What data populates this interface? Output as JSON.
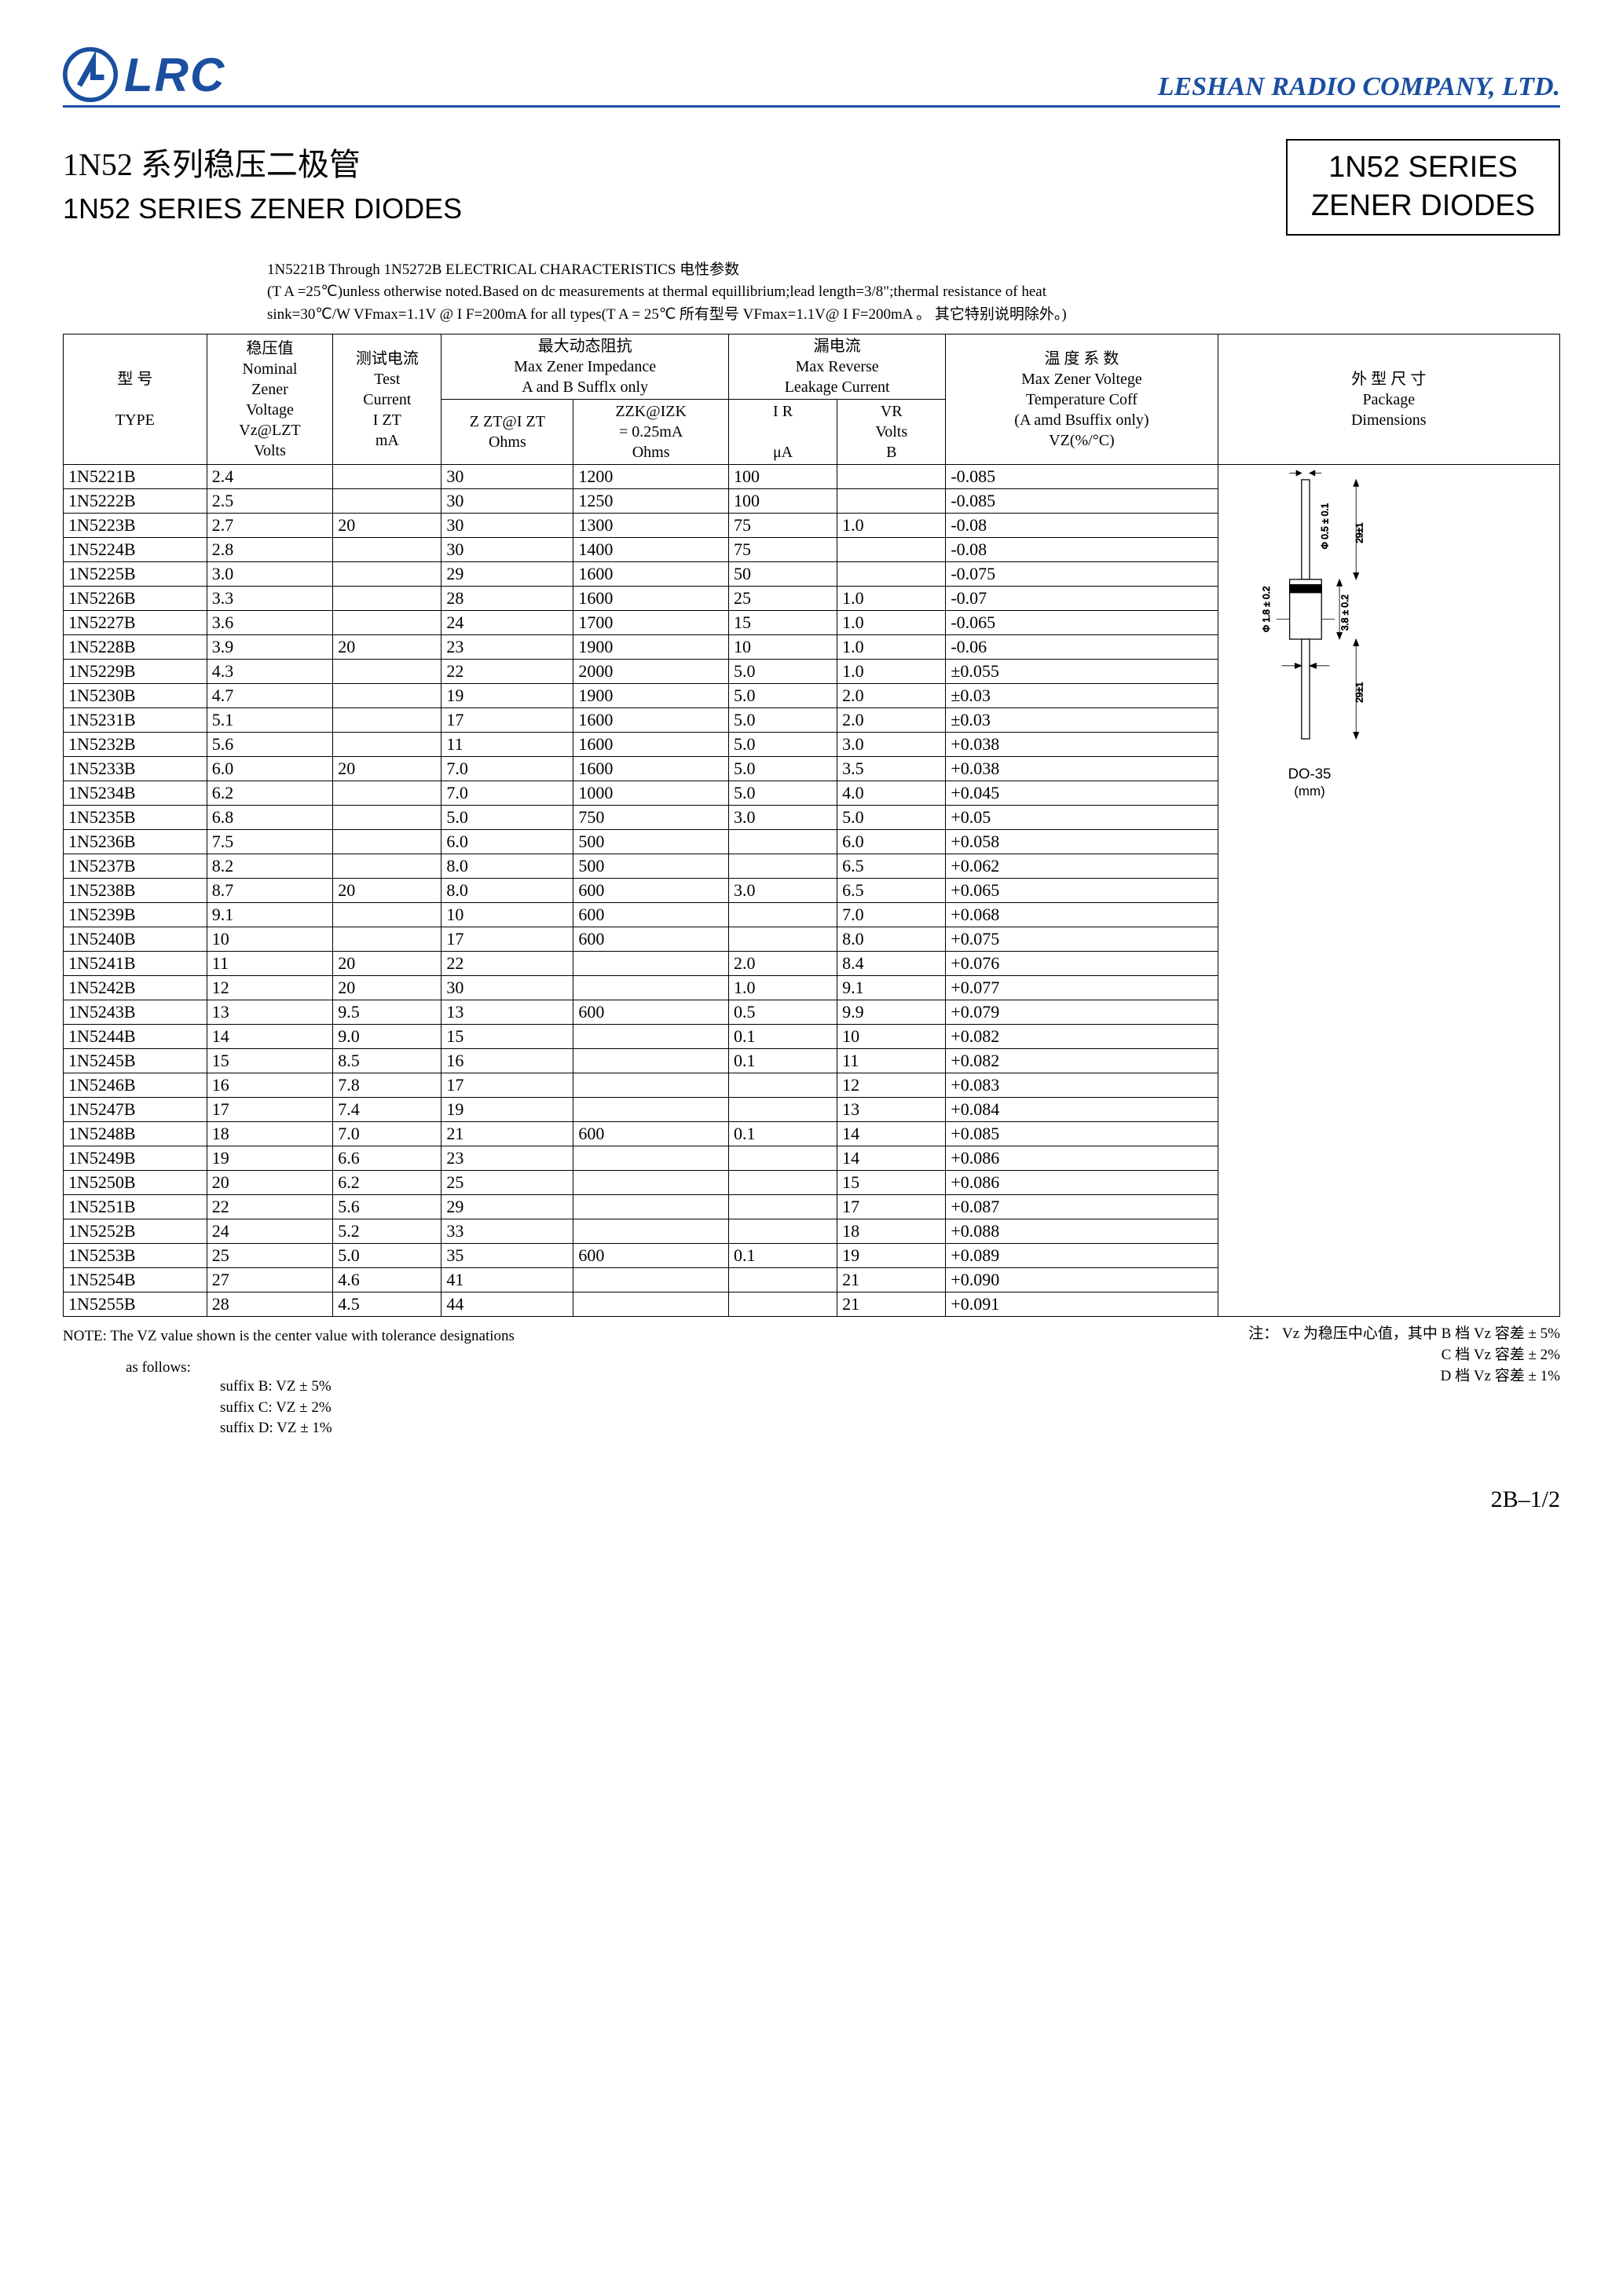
{
  "header": {
    "logo_text": "LRC",
    "company": "LESHAN RADIO COMPANY, LTD."
  },
  "titles": {
    "cn": "1N52 系列稳压二极管",
    "en": "1N52 SERIES ZENER DIODES",
    "box_line1": "1N52  SERIES",
    "box_line2": "ZENER  DIODES"
  },
  "pre_notes": {
    "line1": "1N5221B Through 1N5272B ELECTRICAL CHARACTERISTICS 电性参数",
    "line2": "(T A =25℃)unless otherwise noted.Based on dc measurements at thermal equillibrium;lead length=3/8\";thermal resistance of heat",
    "line3": "sink=30℃/W  VFmax=1.1V @ I F=200mA for all types(T A = 25℃ 所有型号 VFmax=1.1V@ I F=200mA 。 其它特别说明除外。)"
  },
  "headers": {
    "c1a": "型  号",
    "c1b": "TYPE",
    "c2a": "稳压值",
    "c2b": "Nominal",
    "c2c": "Zener",
    "c2d": "Voltage",
    "c2e": "Vz@LZT",
    "c2f": "Volts",
    "c3a": "测试电流",
    "c3b": "Test",
    "c3c": "Current",
    "c3d": "I ZT",
    "c3e": "mA",
    "c45top_cn": "最大动态阻抗",
    "c45top_en1": "Max Zener Impedance",
    "c45top_en2": "A and B Sufflx only",
    "c4a": "Z ZT@I ZT",
    "c4b": "Ohms",
    "c5a": "ZZK@IZK",
    "c5b": "= 0.25mA",
    "c5c": "Ohms",
    "c67top_cn": "漏电流",
    "c67top_en1": "Max Reverse",
    "c67top_en2": "Leakage Current",
    "c6a": "I R",
    "c6b": "μA",
    "c7a": "VR",
    "c7b": "Volts",
    "c7c": "B",
    "c8a": "温 度 系 数",
    "c8b": "Max Zener Voltege",
    "c8c": "Temperature Coff",
    "c8d": "(A amd Bsuffix only)",
    "c8e": "VZ(%/°C)",
    "c9a": "外 型 尺 寸",
    "c9b": "Package",
    "c9c": "Dimensions"
  },
  "rows": [
    {
      "type": "1N5221B",
      "vz": "2.4",
      "izt": "",
      "zzt": "30",
      "zzk": "1200",
      "ir": "100",
      "vr": "",
      "tc": "-0.085",
      "sec": true
    },
    {
      "type": "1N5222B",
      "vz": "2.5",
      "izt": "",
      "zzt": "30",
      "zzk": "1250",
      "ir": "100",
      "vr": "",
      "tc": "-0.085"
    },
    {
      "type": "1N5223B",
      "vz": "2.7",
      "izt": "20",
      "zzt": "30",
      "zzk": "1300",
      "ir": "75",
      "vr": "1.0",
      "tc": "-0.08"
    },
    {
      "type": "1N5224B",
      "vz": "2.8",
      "izt": "",
      "zzt": "30",
      "zzk": "1400",
      "ir": "75",
      "vr": "",
      "tc": "-0.08"
    },
    {
      "type": "1N5225B",
      "vz": "3.0",
      "izt": "",
      "zzt": "29",
      "zzk": "1600",
      "ir": "50",
      "vr": "",
      "tc": "-0.075"
    },
    {
      "type": "1N5226B",
      "vz": "3.3",
      "izt": "",
      "zzt": "28",
      "zzk": "1600",
      "ir": "25",
      "vr": "1.0",
      "tc": "-0.07",
      "sec": true
    },
    {
      "type": "1N5227B",
      "vz": "3.6",
      "izt": "",
      "zzt": "24",
      "zzk": "1700",
      "ir": "15",
      "vr": "1.0",
      "tc": "-0.065"
    },
    {
      "type": "1N5228B",
      "vz": "3.9",
      "izt": "20",
      "zzt": "23",
      "zzk": "1900",
      "ir": "10",
      "vr": "1.0",
      "tc": "-0.06"
    },
    {
      "type": "1N5229B",
      "vz": "4.3",
      "izt": "",
      "zzt": "22",
      "zzk": "2000",
      "ir": "5.0",
      "vr": "1.0",
      "tc": "±0.055"
    },
    {
      "type": "1N5230B",
      "vz": "4.7",
      "izt": "",
      "zzt": "19",
      "zzk": "1900",
      "ir": "5.0",
      "vr": "2.0",
      "tc": "±0.03"
    },
    {
      "type": "1N5231B",
      "vz": "5.1",
      "izt": "",
      "zzt": "17",
      "zzk": "1600",
      "ir": "5.0",
      "vr": "2.0",
      "tc": "±0.03",
      "sec": true
    },
    {
      "type": "1N5232B",
      "vz": "5.6",
      "izt": "",
      "zzt": "11",
      "zzk": "1600",
      "ir": "5.0",
      "vr": "3.0",
      "tc": "+0.038"
    },
    {
      "type": "1N5233B",
      "vz": "6.0",
      "izt": "20",
      "zzt": "7.0",
      "zzk": "1600",
      "ir": "5.0",
      "vr": "3.5",
      "tc": "+0.038"
    },
    {
      "type": "1N5234B",
      "vz": "6.2",
      "izt": "",
      "zzt": "7.0",
      "zzk": "1000",
      "ir": "5.0",
      "vr": "4.0",
      "tc": "+0.045"
    },
    {
      "type": "1N5235B",
      "vz": "6.8",
      "izt": "",
      "zzt": "5.0",
      "zzk": "750",
      "ir": "3.0",
      "vr": "5.0",
      "tc": "+0.05"
    },
    {
      "type": "1N5236B",
      "vz": "7.5",
      "izt": "",
      "zzt": "6.0",
      "zzk": "500",
      "ir": "",
      "vr": "6.0",
      "tc": "+0.058",
      "sec": true
    },
    {
      "type": "1N5237B",
      "vz": "8.2",
      "izt": "",
      "zzt": "8.0",
      "zzk": "500",
      "ir": "",
      "vr": "6.5",
      "tc": "+0.062"
    },
    {
      "type": "1N5238B",
      "vz": "8.7",
      "izt": "20",
      "zzt": "8.0",
      "zzk": "600",
      "ir": "3.0",
      "vr": "6.5",
      "tc": "+0.065"
    },
    {
      "type": "1N5239B",
      "vz": "9.1",
      "izt": "",
      "zzt": "10",
      "zzk": "600",
      "ir": "",
      "vr": "7.0",
      "tc": "+0.068"
    },
    {
      "type": "1N5240B",
      "vz": "10",
      "izt": "",
      "zzt": "17",
      "zzk": "600",
      "ir": "",
      "vr": "8.0",
      "tc": "+0.075",
      "sec": true
    },
    {
      "type": "1N5241B",
      "vz": "11",
      "izt": "20",
      "zzt": "22",
      "zzk": "",
      "ir": "2.0",
      "vr": "8.4",
      "tc": "+0.076"
    },
    {
      "type": "1N5242B",
      "vz": "12",
      "izt": "20",
      "zzt": "30",
      "zzk": "",
      "ir": "1.0",
      "vr": "9.1",
      "tc": "+0.077"
    },
    {
      "type": "1N5243B",
      "vz": "13",
      "izt": "9.5",
      "zzt": "13",
      "zzk": "600",
      "ir": "0.5",
      "vr": "9.9",
      "tc": "+0.079"
    },
    {
      "type": "1N5244B",
      "vz": "14",
      "izt": "9.0",
      "zzt": "15",
      "zzk": "",
      "ir": "0.1",
      "vr": "10",
      "tc": "+0.082"
    },
    {
      "type": "1N5245B",
      "vz": "15",
      "izt": "8.5",
      "zzt": "16",
      "zzk": "",
      "ir": "0.1",
      "vr": "11",
      "tc": "+0.082",
      "sec": true
    },
    {
      "type": "1N5246B",
      "vz": "16",
      "izt": "7.8",
      "zzt": "17",
      "zzk": "",
      "ir": "",
      "vr": "12",
      "tc": "+0.083"
    },
    {
      "type": "1N5247B",
      "vz": "17",
      "izt": "7.4",
      "zzt": "19",
      "zzk": "",
      "ir": "",
      "vr": "13",
      "tc": "+0.084"
    },
    {
      "type": "1N5248B",
      "vz": "18",
      "izt": "7.0",
      "zzt": "21",
      "zzk": "600",
      "ir": "0.1",
      "vr": "14",
      "tc": "+0.085"
    },
    {
      "type": "1N5249B",
      "vz": "19",
      "izt": "6.6",
      "zzt": "23",
      "zzk": "",
      "ir": "",
      "vr": "14",
      "tc": "+0.086"
    },
    {
      "type": "1N5250B",
      "vz": "20",
      "izt": "6.2",
      "zzt": "25",
      "zzk": "",
      "ir": "",
      "vr": "15",
      "tc": "+0.086",
      "sec": true
    },
    {
      "type": "1N5251B",
      "vz": "22",
      "izt": "5.6",
      "zzt": "29",
      "zzk": "",
      "ir": "",
      "vr": "17",
      "tc": "+0.087"
    },
    {
      "type": "1N5252B",
      "vz": "24",
      "izt": "5.2",
      "zzt": "33",
      "zzk": "",
      "ir": "",
      "vr": "18",
      "tc": "+0.088"
    },
    {
      "type": "1N5253B",
      "vz": "25",
      "izt": "5.0",
      "zzt": "35",
      "zzk": "600",
      "ir": "0.1",
      "vr": "19",
      "tc": "+0.089"
    },
    {
      "type": "1N5254B",
      "vz": "27",
      "izt": "4.6",
      "zzt": "41",
      "zzk": "",
      "ir": "",
      "vr": "21",
      "tc": "+0.090"
    },
    {
      "type": "1N5255B",
      "vz": "28",
      "izt": "4.5",
      "zzt": "44",
      "zzk": "",
      "ir": "",
      "vr": "21",
      "tc": "+0.091",
      "last": true
    }
  ],
  "package": {
    "name": "DO-35",
    "unit": "(mm)",
    "dims": {
      "lead_len": "29±1",
      "lead_dia": "Φ 0.5 ± 0.1",
      "body_len": "3.8 ± 0.2",
      "body_dia": "Φ 1.8 ± 0.2"
    }
  },
  "footnotes": {
    "left1": "NOTE: The VZ value shown is the center value with tolerance designations",
    "left2": "as  follows:",
    "sB": "suffix B:  VZ ± 5%",
    "sC": "suffix C:  VZ ± 2%",
    "sD": "suffix D:  VZ ± 1%",
    "right1": "注： Vz 为稳压中心值，其中 B 档 Vz 容差 ± 5%",
    "right2": "C 档 Vz 容差 ± 2%",
    "right3": "D 档 Vz 容差 ± 1%"
  },
  "page": "2B–1/2",
  "colors": {
    "brand": "#1a4fa0",
    "text": "#000000",
    "bg": "#ffffff"
  }
}
